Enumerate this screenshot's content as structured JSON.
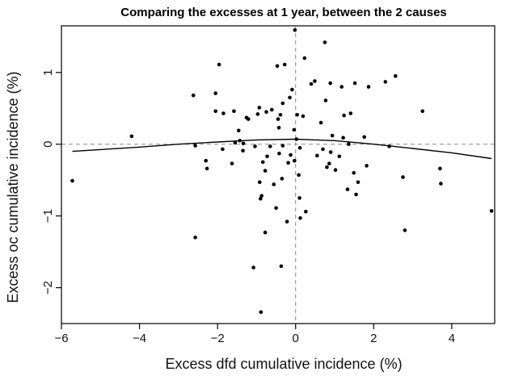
{
  "chart_data": {
    "type": "scatter",
    "title": "Comparing the excesses at 1 year, between the 2 causes",
    "xlabel": "Excess dfd cumulative incidence (%)",
    "ylabel": "Excess oc cumulative incidence (%)",
    "xlim": [
      -6,
      5.1
    ],
    "ylim": [
      -2.5,
      1.65
    ],
    "xticks": [
      -6,
      -4,
      -2,
      0,
      2,
      4
    ],
    "yticks": [
      -2,
      -1,
      0,
      1
    ],
    "xtick_labels": [
      "−6",
      "−4",
      "−2",
      "0",
      "2",
      "4"
    ],
    "ytick_labels": [
      "−2",
      "−1",
      "0",
      "1"
    ],
    "reference_lines": {
      "x": 0,
      "y": 0,
      "style": "dashed",
      "color": "#888888"
    },
    "grid": false,
    "points": [
      [
        -5.72,
        -0.51
      ],
      [
        -4.2,
        0.11
      ],
      [
        -2.62,
        0.68
      ],
      [
        -2.57,
        -1.3
      ],
      [
        -2.57,
        -0.02
      ],
      [
        -2.3,
        -0.23
      ],
      [
        -2.27,
        -0.34
      ],
      [
        -2.05,
        0.46
      ],
      [
        -2.05,
        0.71
      ],
      [
        -1.96,
        1.11
      ],
      [
        -1.87,
        -0.07
      ],
      [
        -1.85,
        0.43
      ],
      [
        -1.63,
        -0.27
      ],
      [
        -1.58,
        0.46
      ],
      [
        -1.55,
        0.02
      ],
      [
        -1.46,
        0.19
      ],
      [
        -1.43,
        0.05
      ],
      [
        -1.35,
        -0.09
      ],
      [
        -1.34,
        0.01
      ],
      [
        -1.26,
        0.37
      ],
      [
        -1.21,
        0.35
      ],
      [
        -1.08,
        -1.72
      ],
      [
        -1.04,
        -0.03
      ],
      [
        -0.97,
        0.42
      ],
      [
        -0.93,
        0.51
      ],
      [
        -0.92,
        -0.53
      ],
      [
        -0.9,
        -0.76
      ],
      [
        -0.89,
        -2.34
      ],
      [
        -0.87,
        -0.72
      ],
      [
        -0.84,
        -0.25
      ],
      [
        -0.78,
        -0.37
      ],
      [
        -0.78,
        -1.23
      ],
      [
        -0.75,
        0.45
      ],
      [
        -0.73,
        -0.17
      ],
      [
        -0.65,
        -0.03
      ],
      [
        -0.61,
        0.48
      ],
      [
        -0.56,
        -0.56
      ],
      [
        -0.5,
        -0.89
      ],
      [
        -0.47,
        1.09
      ],
      [
        -0.45,
        0.35
      ],
      [
        -0.43,
        0.23
      ],
      [
        -0.42,
        -0.13
      ],
      [
        -0.39,
        0.41
      ],
      [
        -0.37,
        -1.7
      ],
      [
        -0.35,
        -0.48
      ],
      [
        -0.33,
        -0.02
      ],
      [
        -0.33,
        0.57
      ],
      [
        -0.28,
        1.11
      ],
      [
        -0.22,
        -1.08
      ],
      [
        -0.19,
        -0.26
      ],
      [
        -0.15,
        0.65
      ],
      [
        -0.13,
        -0.15
      ],
      [
        -0.09,
        0.76
      ],
      [
        -0.04,
        0.2
      ],
      [
        -0.03,
        -0.23
      ],
      [
        -0.02,
        1.59
      ],
      [
        0.02,
        0.07
      ],
      [
        0.04,
        0.41
      ],
      [
        0.08,
        -0.43
      ],
      [
        0.1,
        -0.75
      ],
      [
        0.11,
        -0.05
      ],
      [
        0.12,
        -1.03
      ],
      [
        0.19,
        0.39
      ],
      [
        0.23,
        1.2
      ],
      [
        0.26,
        -0.94
      ],
      [
        0.4,
        0.84
      ],
      [
        0.49,
        0.88
      ],
      [
        0.55,
        -0.16
      ],
      [
        0.65,
        0.3
      ],
      [
        0.7,
        -0.07
      ],
      [
        0.75,
        1.42
      ],
      [
        0.77,
        0.61
      ],
      [
        0.8,
        -0.32
      ],
      [
        0.86,
        -0.27
      ],
      [
        0.89,
        0.85
      ],
      [
        0.9,
        -0.11
      ],
      [
        0.94,
        0.12
      ],
      [
        1.02,
        -0.36
      ],
      [
        1.12,
        -0.17
      ],
      [
        1.18,
        0.8
      ],
      [
        1.22,
        0.09
      ],
      [
        1.24,
        0.4
      ],
      [
        1.33,
        -0.63
      ],
      [
        1.36,
        0.0
      ],
      [
        1.41,
        0.43
      ],
      [
        1.49,
        -0.4
      ],
      [
        1.52,
        0.85
      ],
      [
        1.55,
        -0.7
      ],
      [
        1.6,
        -0.53
      ],
      [
        1.76,
        0.1
      ],
      [
        1.82,
        -0.3
      ],
      [
        1.87,
        0.8
      ],
      [
        2.3,
        0.87
      ],
      [
        2.4,
        -0.03
      ],
      [
        2.56,
        0.95
      ],
      [
        2.75,
        -0.46
      ],
      [
        2.8,
        -1.2
      ],
      [
        3.25,
        0.46
      ],
      [
        3.7,
        -0.34
      ],
      [
        3.72,
        -0.55
      ],
      [
        5.02,
        -0.93
      ]
    ],
    "smooth_line": [
      [
        -5.72,
        -0.1
      ],
      [
        -4,
        -0.04
      ],
      [
        -3,
        0.0
      ],
      [
        -2,
        0.03
      ],
      [
        -1,
        0.06
      ],
      [
        0,
        0.07
      ],
      [
        1,
        0.05
      ],
      [
        2,
        0.0
      ],
      [
        3,
        -0.06
      ],
      [
        4,
        -0.12
      ],
      [
        5.02,
        -0.2
      ]
    ]
  }
}
